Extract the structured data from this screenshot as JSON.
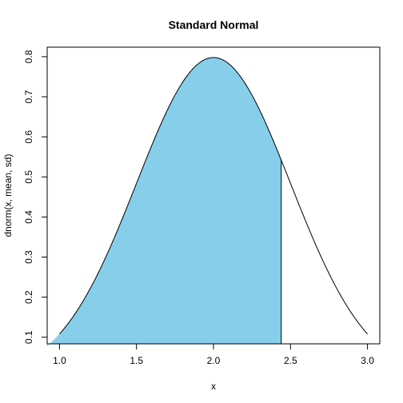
{
  "chart_data": {
    "type": "area",
    "title": "Standard Normal",
    "xlabel": "x",
    "ylabel": "dnorm(x, mean, sd)",
    "distribution": {
      "mean": 2,
      "sd": 0.5
    },
    "x_range": [
      1,
      3
    ],
    "shade_upper": 2.44,
    "shade_color": "#87CEEB",
    "xlim": [
      0.92,
      3.08
    ],
    "ylim": [
      0.0835,
      0.8237
    ],
    "x_ticks": [
      1.0,
      1.5,
      2.0,
      2.5,
      3.0
    ],
    "x_tick_labels": [
      "1.0",
      "1.5",
      "2.0",
      "2.5",
      "3.0"
    ],
    "y_ticks": [
      0.1,
      0.2,
      0.3,
      0.4,
      0.5,
      0.6,
      0.7,
      0.8
    ],
    "y_tick_labels": [
      "0.1",
      "0.2",
      "0.3",
      "0.4",
      "0.5",
      "0.6",
      "0.7",
      "0.8"
    ],
    "grid": false
  }
}
